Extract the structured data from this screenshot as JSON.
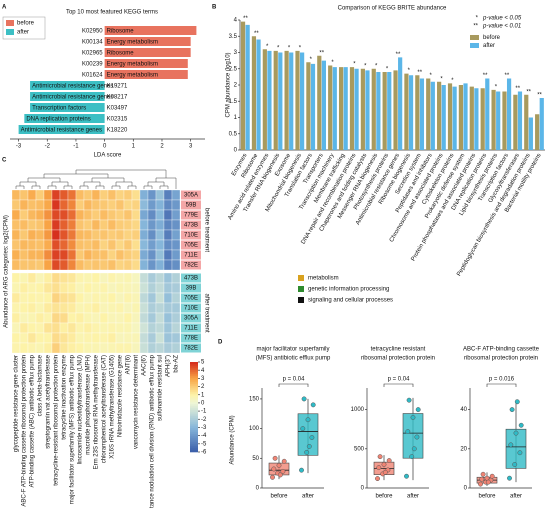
{
  "chart_data": [
    {
      "type": "hbar",
      "panel": "A",
      "title": "Top 10 most featured KEGG terms",
      "xlabel": "LDA score",
      "categories": [
        "K02950",
        "K00134",
        "K02965",
        "K00239",
        "K01624",
        "K19271",
        "K08217",
        "K03497",
        "K02315",
        "K18220"
      ],
      "terms": [
        "Ribosome",
        "Energy metabolism",
        "Ribosome",
        "Energy metabolism",
        "Energy metabolism",
        "Antimicrobial resistance genes",
        "Antimicrobial resistance genes",
        "Transcription factors",
        "DNA replication proteins",
        "Antimicrobial resistance genes"
      ],
      "values": [
        3.2,
        3.0,
        3.0,
        2.9,
        2.9,
        -2.6,
        -2.6,
        -2.6,
        -2.8,
        -3.0
      ],
      "bar_group": [
        0,
        0,
        0,
        0,
        0,
        1,
        1,
        1,
        1,
        1
      ],
      "legend": [
        {
          "name": "before",
          "color": "#e8735f"
        },
        {
          "name": "after",
          "color": "#3cbfc4"
        }
      ],
      "xlim": [
        -3.3,
        3.5
      ],
      "xticks": [
        -3,
        -2,
        -1,
        0,
        1,
        2,
        3
      ]
    },
    {
      "type": "bar",
      "panel": "B",
      "title": "Comparison of KEGG BRITE abundance",
      "ylabel": "CPM abundance (log10)",
      "categories": [
        "Enzymes",
        "Ribosome",
        "Amino acid related enzymes",
        "Transfer RNA biogenesis",
        "Exosome",
        "Mitochondrial biogenesis",
        "Translation factors",
        "Transporters",
        "Transcription machinery",
        "Membrane trafficking",
        "DNA repair and recombination proteins",
        "Chaperones and folding catalysts",
        "Messenger RNA biogenesis",
        "Photosynthesis proteins",
        "Antimicrobial resistance genes",
        "Ribosome biogenesis",
        "Secretion system",
        "Peptidases and inhibitors",
        "Chromosome and associated proteins",
        "Cytoskeleton proteins",
        "Prokaryotic defense system",
        "Protein phosphatases and associated proteins",
        "DNA replication proteins",
        "Lipid biosynthesis proteins",
        "Transcription factors",
        "Glycosyltransferases",
        "Peptidoglycan biosynthesis and degradation proteins",
        "Bacterial motility proteins"
      ],
      "category_groups": [
        0,
        1,
        0,
        1,
        2,
        1,
        1,
        2,
        1,
        2,
        1,
        1,
        1,
        1,
        2,
        1,
        2,
        0,
        1,
        2,
        2,
        0,
        1,
        0,
        1,
        0,
        0,
        2
      ],
      "groups": [
        {
          "name": "metabolism",
          "color": "#d9a21f"
        },
        {
          "name": "genetic information processing",
          "color": "#2e8b2e"
        },
        {
          "name": "signaling and cellular processes",
          "color": "#111111"
        }
      ],
      "series": [
        {
          "name": "before",
          "color": "#a89a5e",
          "values": [
            3.95,
            3.5,
            3.1,
            3.05,
            3.05,
            3.05,
            2.7,
            2.9,
            2.6,
            2.55,
            2.55,
            2.5,
            2.5,
            2.4,
            2.45,
            2.35,
            2.3,
            2.2,
            2.1,
            2.05,
            2.0,
            1.95,
            1.9,
            1.85,
            1.8,
            1.7,
            1.7,
            1.1
          ]
        },
        {
          "name": "after",
          "color": "#5bb6e8",
          "values": [
            3.85,
            3.4,
            3.05,
            3.0,
            3.0,
            3.0,
            2.65,
            2.75,
            2.55,
            2.55,
            2.5,
            2.45,
            2.4,
            2.4,
            2.85,
            2.3,
            2.2,
            2.1,
            2.0,
            1.95,
            2.05,
            1.9,
            2.2,
            1.8,
            2.2,
            1.8,
            1.0,
            1.6
          ]
        }
      ],
      "significance": [
        "**",
        "**",
        "*",
        "*",
        "*",
        "*",
        "*",
        "**",
        "*",
        null,
        "*",
        "*",
        "*",
        "*",
        "**",
        "*",
        "**",
        "*",
        "*",
        "*",
        null,
        null,
        "**",
        "*",
        "**",
        "**",
        "**",
        "**"
      ],
      "sig_legend": [
        {
          "symbol": "*",
          "label": "p-value < 0.05"
        },
        {
          "symbol": "**",
          "label": "p-value < 0.01"
        }
      ],
      "ylim": [
        0,
        4
      ],
      "yticks": [
        0,
        0.5,
        1,
        1.5,
        2,
        2.5,
        3,
        3.5,
        4
      ]
    },
    {
      "type": "heatmap",
      "panel": "C",
      "ylabel": "Abundance of ARG categories: log2(CPM)",
      "columns": [
        "glycopeptide resistance gene cluster",
        "ABC-F ATP-binding cassette ribosomal protection protein",
        "ATP-binding cassette (ABC) antibiotic efflux pump",
        "class A beta-lactamase",
        "streptogramin vat acetyltransferase",
        "tetracycline-resistant ribosomal protection protein",
        "tetracycline inactivation enzyme",
        "major facilitator superfamily (MFS) antibiotic efflux pump",
        "lincosamide nucleotidyltransferase (LNU)",
        "macrolide phosphotransferase (MPH)",
        "Erm 23S ribosomal RNA methyltransferase",
        "chloramphenicol acetyltransferase (CAT)",
        "X16S rRNA methyltransferase (G1405)",
        "Nitroimidazole resistance gene",
        "ANT(6)",
        "vancomycin resistance determinant",
        "AAC(6')",
        "resistance nodulation cell division (RND) antibiotic efflux pump",
        "sulfonamide resistant sul",
        "APH(3'')",
        "bla-AZ"
      ],
      "rows": [
        "305A",
        "59B",
        "779E",
        "473B",
        "710E",
        "705E",
        "711E",
        "782E",
        "473B",
        "39B",
        "705E",
        "710E",
        "305A",
        "711E",
        "778E",
        "782E"
      ],
      "row_group": [
        0,
        0,
        0,
        0,
        0,
        0,
        0,
        0,
        1,
        1,
        1,
        1,
        1,
        1,
        1,
        1
      ],
      "group_names": [
        "before treatment",
        "after treatment"
      ],
      "group_colors": [
        "#f4a6a6",
        "#7fd3d6"
      ],
      "values": [
        [
          2.5,
          2.2,
          2.8,
          2.0,
          3.1,
          4.6,
          4.2,
          3.8,
          2.4,
          2.1,
          2.6,
          1.9,
          2.3,
          1.8,
          2.0,
          1.5,
          -3.2,
          -4.1,
          -2.5,
          -4.8,
          -3.6
        ],
        [
          2.1,
          2.6,
          2.3,
          2.4,
          2.9,
          4.8,
          4.0,
          3.5,
          2.0,
          2.5,
          2.2,
          2.1,
          1.9,
          2.2,
          1.7,
          1.8,
          -2.8,
          -3.9,
          -3.1,
          -4.5,
          -4.0
        ],
        [
          2.8,
          2.0,
          2.5,
          2.7,
          3.3,
          4.5,
          4.4,
          3.9,
          2.6,
          2.3,
          2.0,
          2.4,
          2.1,
          1.9,
          2.2,
          1.6,
          -3.5,
          -4.4,
          -2.9,
          -5.1,
          -3.8
        ],
        [
          2.3,
          2.4,
          2.1,
          2.2,
          3.0,
          4.7,
          4.1,
          3.6,
          2.2,
          2.0,
          2.5,
          2.0,
          2.4,
          2.0,
          1.9,
          1.7,
          -3.0,
          -4.0,
          -3.3,
          -4.6,
          -4.2
        ],
        [
          2.6,
          2.1,
          2.7,
          2.5,
          3.2,
          4.9,
          4.3,
          3.7,
          2.5,
          2.4,
          2.1,
          2.2,
          2.0,
          2.1,
          1.8,
          1.9,
          -3.3,
          -4.3,
          -2.7,
          -4.9,
          -3.7
        ],
        [
          2.2,
          2.5,
          2.4,
          2.3,
          2.8,
          4.4,
          4.0,
          3.4,
          2.3,
          2.2,
          2.4,
          1.8,
          2.2,
          1.7,
          2.1,
          1.5,
          -2.9,
          -3.8,
          -3.0,
          -4.4,
          -4.1
        ],
        [
          2.7,
          2.3,
          2.6,
          2.6,
          3.4,
          4.6,
          4.5,
          3.8,
          2.1,
          2.6,
          2.3,
          2.3,
          1.8,
          2.3,
          2.0,
          1.8,
          -3.4,
          -4.2,
          -2.6,
          -5.0,
          -3.9
        ],
        [
          2.4,
          2.2,
          2.2,
          2.1,
          3.0,
          4.5,
          4.2,
          3.5,
          2.4,
          2.1,
          2.2,
          2.1,
          2.3,
          1.8,
          1.9,
          1.6,
          -3.1,
          -4.1,
          -3.2,
          -4.7,
          -4.3
        ],
        [
          1.0,
          0.8,
          1.2,
          0.7,
          1.1,
          1.6,
          1.4,
          1.3,
          0.9,
          0.8,
          1.0,
          0.6,
          0.9,
          0.7,
          0.8,
          0.5,
          -1.2,
          -2.0,
          -1.5,
          -2.4,
          -1.8
        ],
        [
          0.8,
          1.1,
          0.9,
          1.0,
          1.3,
          1.5,
          1.2,
          1.1,
          0.7,
          1.0,
          0.8,
          0.9,
          0.6,
          0.8,
          0.7,
          0.6,
          -1.0,
          -1.8,
          -1.3,
          -2.2,
          -2.0
        ],
        [
          1.2,
          0.9,
          1.0,
          0.9,
          1.0,
          1.8,
          1.5,
          1.4,
          1.0,
          0.7,
          0.9,
          0.8,
          1.0,
          0.6,
          0.9,
          0.7,
          -1.4,
          -2.2,
          -1.1,
          -2.6,
          -1.7
        ],
        [
          0.9,
          1.0,
          1.1,
          0.8,
          1.2,
          1.4,
          1.3,
          1.2,
          0.8,
          0.9,
          1.1,
          0.7,
          0.8,
          0.9,
          0.6,
          0.8,
          -1.1,
          -1.9,
          -1.6,
          -2.1,
          -2.1
        ],
        [
          1.1,
          0.7,
          0.8,
          1.1,
          0.9,
          1.7,
          1.6,
          1.0,
          1.1,
          0.8,
          0.7,
          1.0,
          0.7,
          0.7,
          1.0,
          0.6,
          -1.3,
          -2.1,
          -1.2,
          -2.5,
          -1.9
        ],
        [
          0.7,
          1.2,
          1.0,
          0.9,
          1.4,
          1.5,
          1.1,
          1.3,
          0.9,
          1.1,
          0.9,
          0.8,
          0.9,
          0.8,
          0.8,
          0.5,
          -0.9,
          -1.7,
          -1.4,
          -2.3,
          -1.6
        ],
        [
          1.0,
          0.9,
          1.3,
          1.0,
          1.0,
          1.6,
          1.4,
          1.2,
          0.8,
          0.9,
          1.0,
          0.9,
          1.1,
          0.6,
          0.7,
          0.7,
          -1.2,
          -2.0,
          -1.0,
          -2.4,
          -2.2
        ],
        [
          0.9,
          1.0,
          0.9,
          0.8,
          1.1,
          1.9,
          1.3,
          1.1,
          1.0,
          0.8,
          0.8,
          0.7,
          0.8,
          0.9,
          0.9,
          0.6,
          -1.1,
          -1.8,
          -1.5,
          -2.0,
          -1.8
        ]
      ],
      "colorscale": [
        {
          "value": -6,
          "color": "#3a5ca8"
        },
        {
          "value": -3,
          "color": "#86b6da"
        },
        {
          "value": 0,
          "color": "#eef6d6"
        },
        {
          "value": 1,
          "color": "#fdf3a8"
        },
        {
          "value": 3,
          "color": "#f8a445"
        },
        {
          "value": 5,
          "color": "#d42a1c"
        }
      ],
      "clim": [
        -6,
        5
      ],
      "cticks": [
        5,
        4,
        3,
        2,
        1,
        0,
        -1,
        -2,
        -3,
        -4,
        -5,
        -6
      ]
    },
    {
      "type": "box",
      "panel": "D",
      "ylabel": "Abundance (CPM)",
      "colors": [
        "#f08474",
        "#2fbac6"
      ],
      "subplots": [
        {
          "title": [
            "major facilitator superfamily",
            "(MFS) antibiotic efflux pump"
          ],
          "p_label": "p = 0.04",
          "categories": [
            "before",
            "after"
          ],
          "boxes": [
            {
              "min": 15,
              "q1": 22,
              "median": 30,
              "q3": 42,
              "max": 55,
              "points": [
                18,
                25,
                28,
                32,
                38,
                45,
                50,
                22
              ]
            },
            {
              "min": 25,
              "q1": 55,
              "median": 95,
              "q3": 125,
              "max": 150,
              "points": [
                30,
                60,
                85,
                100,
                115,
                140,
                150,
                70
              ]
            }
          ],
          "ylim": [
            0,
            165
          ],
          "yticks": [
            0,
            50,
            100,
            150
          ]
        },
        {
          "title": [
            "tetracycline resistant",
            "ribosomal protection protein"
          ],
          "p_label": "p = 0.04",
          "categories": [
            "before",
            "after"
          ],
          "boxes": [
            {
              "min": 100,
              "q1": 170,
              "median": 250,
              "q3": 330,
              "max": 420,
              "points": [
                120,
                180,
                230,
                260,
                300,
                350,
                400,
                200
              ]
            },
            {
              "min": 100,
              "q1": 380,
              "median": 700,
              "q3": 950,
              "max": 1150,
              "points": [
                150,
                400,
                650,
                720,
                900,
                1000,
                1120,
                500
              ]
            }
          ],
          "ylim": [
            0,
            1250
          ],
          "yticks": [
            0,
            500,
            1000
          ]
        },
        {
          "title": [
            "ABC-F ATP-binding cassette",
            "ribosomal protection protein"
          ],
          "p_label": "p = 0.016",
          "categories": [
            "before",
            "after"
          ],
          "boxes": [
            {
              "min": 1,
              "q1": 2.5,
              "median": 4,
              "q3": 5.5,
              "max": 8,
              "points": [
                2,
                3,
                4,
                4.5,
                5,
                6,
                7,
                3
              ]
            },
            {
              "min": 3,
              "q1": 10,
              "median": 21,
              "q3": 30,
              "max": 45,
              "points": [
                5,
                12,
                18,
                22,
                28,
                32,
                40,
                44
              ]
            }
          ],
          "ylim": [
            0,
            50
          ],
          "yticks": [
            0,
            20,
            40
          ]
        }
      ]
    }
  ]
}
